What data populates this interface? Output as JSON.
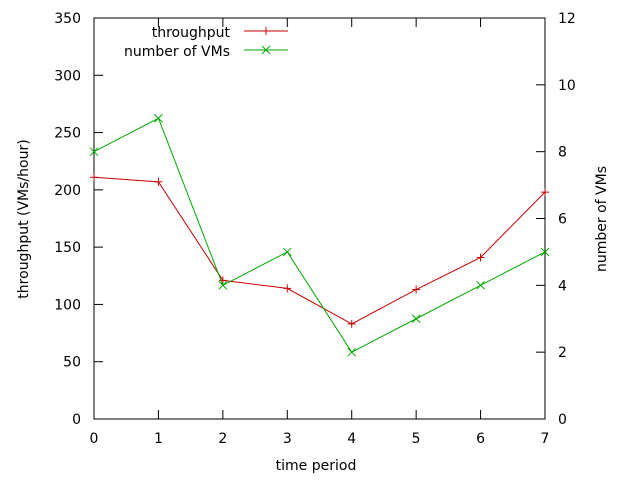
{
  "chart_data": {
    "type": "line",
    "xlabel": "time period",
    "ylabel": "throughput (VMs/hour)",
    "y2label": "number of VMs",
    "x": [
      0,
      1,
      2,
      3,
      4,
      5,
      6,
      7
    ],
    "xlim": [
      0,
      7
    ],
    "ylim": [
      0,
      350
    ],
    "y2lim": [
      0,
      12
    ],
    "xticks": [
      0,
      1,
      2,
      3,
      4,
      5,
      6,
      7
    ],
    "yticks": [
      0,
      50,
      100,
      150,
      200,
      250,
      300,
      350
    ],
    "y2ticks": [
      0,
      2,
      4,
      6,
      8,
      10,
      12
    ],
    "grid": false,
    "legend_position": "top-center",
    "series": [
      {
        "name": "throughput",
        "axis": "left",
        "color": "#cc0000",
        "marker": "plus",
        "values": [
          211,
          207,
          121,
          114,
          83,
          113,
          141,
          198
        ]
      },
      {
        "name": "number of VMs",
        "axis": "right",
        "color": "#00aa00",
        "marker": "cross",
        "values": [
          8,
          9,
          4,
          5,
          2,
          3,
          4,
          5
        ]
      }
    ]
  }
}
